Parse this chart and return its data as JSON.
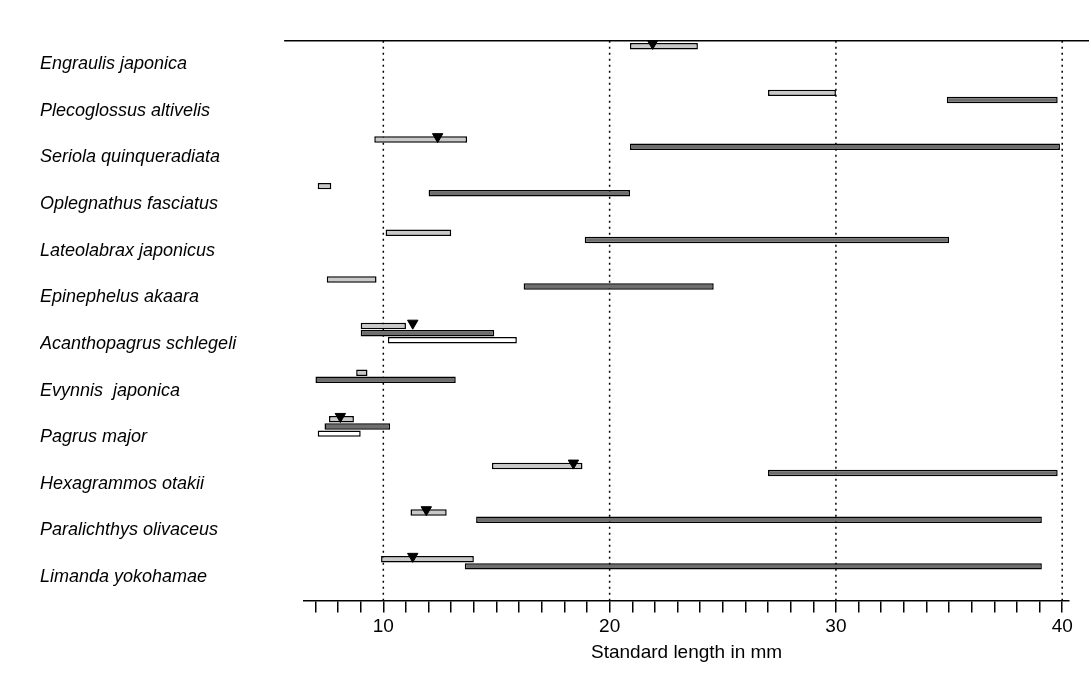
{
  "chart_data": {
    "type": "bar",
    "orientation": "horizontal",
    "xlabel": "Standard length in mm",
    "categories": [
      "Engraulis japonica",
      "Plecoglossus altivelis",
      "Seriola quinqueradiata",
      "Oplegnathus fasciatus",
      "Lateolabrax japonicus",
      "Epinephelus akaara",
      "Acanthopagrus schlegeli",
      "Evynnis  japonica",
      "Pagrus major",
      "Hexagrammos otakii",
      "Paralichthys olivaceus",
      "Limanda yokohamae"
    ],
    "series": [
      {
        "color": "#c8c8c8",
        "base": [
          20.9,
          27.0,
          9.6,
          7.1,
          10.1,
          7.5,
          9.0,
          8.8,
          7.6,
          14.8,
          11.2,
          9.9
        ],
        "values": [
          3.0,
          3.0,
          4.1,
          0.6,
          2.9,
          2.2,
          2.0,
          0.5,
          1.1,
          4.0,
          1.6,
          4.1
        ]
      },
      {
        "color": "#6e6e6e",
        "base": [
          null,
          34.9,
          20.9,
          12.0,
          18.9,
          16.2,
          9.0,
          7.0,
          7.4,
          27.0,
          14.1,
          13.6
        ],
        "values": [
          null,
          4.9,
          19.0,
          8.9,
          16.1,
          8.4,
          5.9,
          6.2,
          2.9,
          12.8,
          25.0,
          25.5
        ]
      },
      {
        "color": "#ffffff",
        "base": [
          null,
          null,
          null,
          null,
          null,
          null,
          10.2,
          null,
          7.1,
          null,
          null,
          null
        ],
        "values": [
          null,
          null,
          null,
          null,
          null,
          null,
          5.7,
          null,
          1.9,
          null,
          null,
          null
        ]
      },
      {
        "type": "scatter",
        "marker": "triangle",
        "color": "#000000",
        "values": [
          21.9,
          null,
          12.4,
          null,
          null,
          null,
          11.3,
          null,
          8.1,
          18.4,
          11.9,
          11.3
        ]
      }
    ],
    "xlim": [
      6.5,
      40.3
    ],
    "xticks": [
      {
        "value": 7,
        "label": null
      },
      {
        "value": 8,
        "label": null
      },
      {
        "value": 9,
        "label": null
      },
      10,
      {
        "value": 11,
        "label": null
      },
      {
        "value": 12,
        "label": null
      },
      {
        "value": 13,
        "label": null
      },
      {
        "value": 14,
        "label": null
      },
      {
        "value": 15,
        "label": null
      },
      {
        "value": 16,
        "label": null
      },
      {
        "value": 17,
        "label": null
      },
      {
        "value": 18,
        "label": null
      },
      {
        "value": 19,
        "label": null
      },
      20,
      {
        "value": 21,
        "label": null
      },
      {
        "value": 22,
        "label": null
      },
      {
        "value": 23,
        "label": null
      },
      {
        "value": 24,
        "label": null
      },
      {
        "value": 25,
        "label": null
      },
      {
        "value": 26,
        "label": null
      },
      {
        "value": 27,
        "label": null
      },
      {
        "value": 28,
        "label": null
      },
      {
        "value": 29,
        "label": null
      },
      30,
      {
        "value": 31,
        "label": null
      },
      {
        "value": 32,
        "label": null
      },
      {
        "value": 33,
        "label": null
      },
      {
        "value": 34,
        "label": null
      },
      {
        "value": 35,
        "label": null
      },
      {
        "value": 36,
        "label": null
      },
      {
        "value": 37,
        "label": null
      },
      {
        "value": 38,
        "label": null
      },
      {
        "value": 39,
        "label": null
      },
      40
    ],
    "ref_lines": [
      {
        "axis": "x",
        "value": 10,
        "line_style": "dotted"
      },
      {
        "axis": "x",
        "value": 20,
        "line_style": "dotted"
      },
      {
        "axis": "x",
        "value": 30,
        "line_style": "dotted"
      },
      {
        "axis": "x",
        "value": 40,
        "line_style": "dotted"
      }
    ],
    "grid": false,
    "legend": false
  }
}
